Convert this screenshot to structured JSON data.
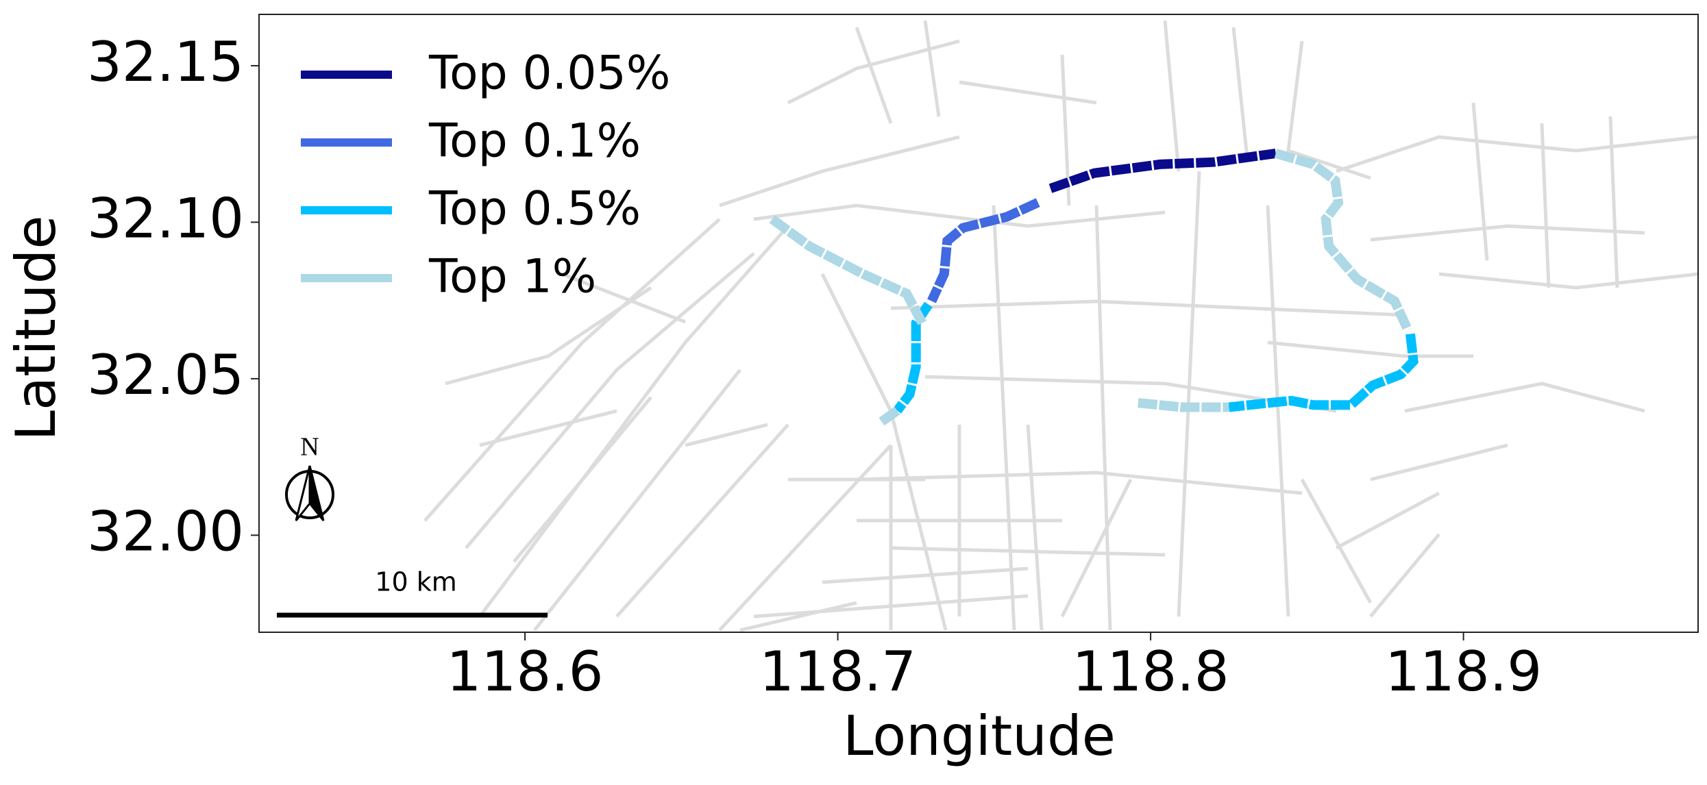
{
  "chart_data": {
    "type": "map",
    "xlabel": "Longitude",
    "ylabel": "Latitude",
    "xlim": [
      118.515,
      118.975
    ],
    "ylim": [
      31.969,
      32.1664
    ],
    "xticks": [
      118.6,
      118.7,
      118.8,
      118.9
    ],
    "yticks": [
      {
        "value": 32.0,
        "label": "32.00"
      },
      32.05,
      {
        "value": 32.1,
        "label": "32.10"
      },
      32.15
    ],
    "legend": "upper left",
    "scale_bar_label": "10 km",
    "north_label": "N",
    "series": [
      {
        "name": "Top 0.05%",
        "color": "#0a0a8c",
        "x": [
          118.768,
          118.782,
          118.803,
          118.82,
          118.84
        ],
        "y": [
          32.1108,
          32.1157,
          32.1185,
          32.1192,
          32.122
        ]
      },
      {
        "name": "Top 0.1%",
        "color": "#4169e1",
        "x": [
          118.764,
          118.754,
          118.74,
          118.735,
          118.734,
          118.73
        ],
        "y": [
          32.1063,
          32.1017,
          32.0982,
          32.094,
          32.0835,
          32.0748
        ]
      },
      {
        "name": "Top 0.5%",
        "color": "#00bfff",
        "x": [
          118.729,
          118.725,
          118.725,
          118.723,
          118.719,
          null,
          118.883,
          118.884,
          118.88,
          118.871,
          118.864,
          118.852,
          118.845,
          118.838,
          118.825
        ],
        "y": [
          32.0737,
          32.0678,
          32.0538,
          32.0451,
          32.0398,
          null,
          32.0643,
          32.0556,
          32.0514,
          32.0479,
          32.0416,
          32.0416,
          32.043,
          32.0423,
          32.0409
        ]
      },
      {
        "name": "Top 1%",
        "color": "#add8e6",
        "x": [
          118.679,
          118.691,
          118.708,
          118.722,
          118.727,
          null,
          118.719,
          118.714,
          null,
          118.84,
          118.852,
          118.859,
          118.86,
          118.856,
          118.857,
          118.866,
          118.878,
          118.882,
          null,
          118.796,
          118.81,
          118.825
        ],
        "y": [
          32.101,
          32.0923,
          32.0835,
          32.0772,
          32.0678,
          null,
          32.0398,
          32.0363,
          null,
          32.122,
          32.1185,
          32.1133,
          32.1063,
          32.101,
          32.0923,
          32.0818,
          32.0748,
          32.0661,
          null,
          32.0423,
          32.0409,
          32.0409
        ]
      }
    ]
  }
}
